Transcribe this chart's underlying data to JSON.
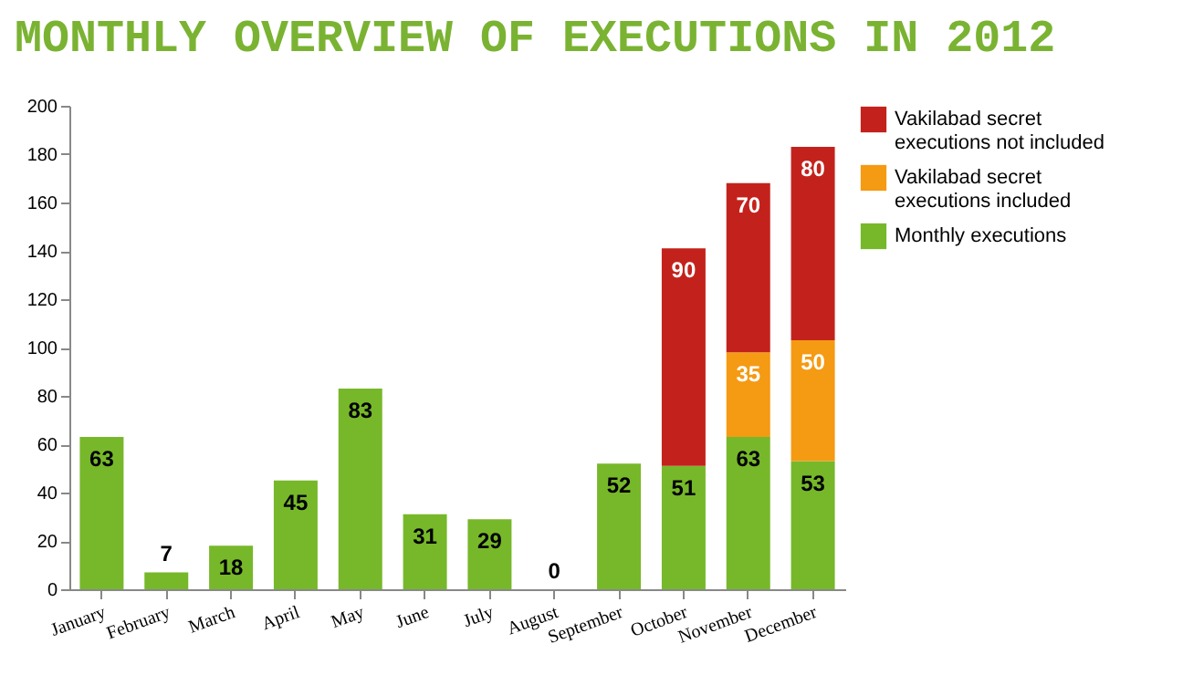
{
  "chart_data": {
    "type": "bar",
    "title": "MONTHLY OVERVIEW OF EXECUTIONS IN 2012",
    "stacked": true,
    "categories": [
      "January",
      "February",
      "March",
      "April",
      "May",
      "June",
      "July",
      "August",
      "September",
      "October",
      "November",
      "December"
    ],
    "series": [
      {
        "name": "Monthly executions",
        "color": "#77b82a",
        "values": [
          63,
          7,
          18,
          45,
          83,
          31,
          29,
          0,
          52,
          51,
          63,
          53
        ]
      },
      {
        "name": "Vakilabad secret executions included",
        "color": "#f59a13",
        "values": [
          null,
          null,
          null,
          null,
          null,
          null,
          null,
          null,
          null,
          null,
          35,
          50
        ]
      },
      {
        "name": "Vakilabad secret executions not included",
        "color": "#c3221c",
        "values": [
          null,
          null,
          null,
          null,
          null,
          null,
          null,
          null,
          null,
          90,
          70,
          80
        ]
      }
    ],
    "ylim": [
      0,
      200
    ],
    "yticks": [
      0,
      20,
      40,
      60,
      80,
      100,
      120,
      140,
      160,
      180,
      200
    ],
    "grid": false,
    "legend": "right",
    "data_labels": true
  }
}
